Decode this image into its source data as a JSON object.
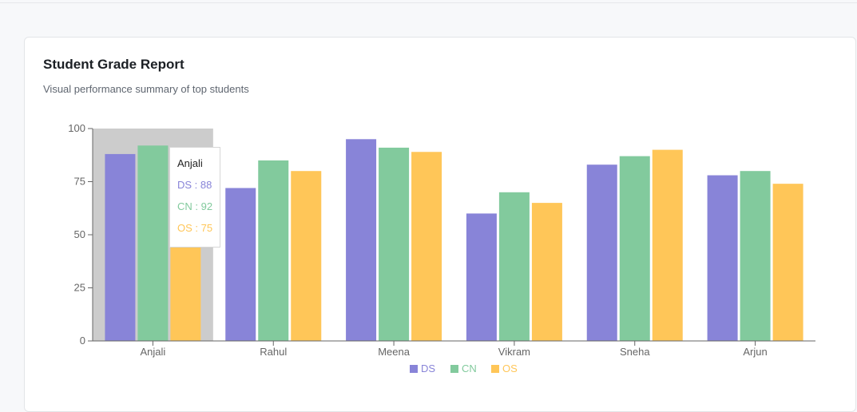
{
  "header": {
    "title": "Student Grade Report",
    "subtitle": "Visual performance summary of top students"
  },
  "tooltip": {
    "name": "Anjali",
    "rows": [
      {
        "text": "DS : 88",
        "color": "#8884d8"
      },
      {
        "text": "CN : 92",
        "color": "#82ca9d"
      },
      {
        "text": "OS : 75",
        "color": "#ffc658"
      }
    ]
  },
  "chart_data": {
    "type": "bar",
    "categories": [
      "Anjali",
      "Rahul",
      "Meena",
      "Vikram",
      "Sneha",
      "Arjun"
    ],
    "series": [
      {
        "name": "DS",
        "color": "#8884d8",
        "values": [
          88,
          72,
          95,
          60,
          83,
          78
        ]
      },
      {
        "name": "CN",
        "color": "#82ca9d",
        "values": [
          92,
          85,
          91,
          70,
          87,
          80
        ]
      },
      {
        "name": "OS",
        "color": "#ffc658",
        "values": [
          75,
          80,
          89,
          65,
          90,
          74
        ]
      }
    ],
    "ylim": [
      0,
      100
    ],
    "yticks": [
      0,
      25,
      50,
      75,
      100
    ],
    "highlighted_category": "Anjali",
    "legend_position": "bottom-center",
    "grid": false
  }
}
